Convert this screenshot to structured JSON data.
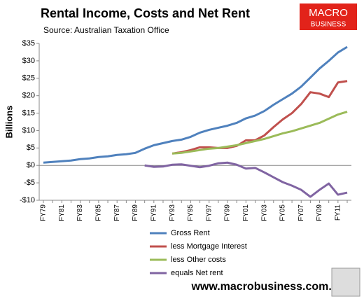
{
  "chart_data": {
    "type": "line",
    "title": "Rental Income, Costs and Net Rent",
    "subtitle": "Source: Australian Taxation Office",
    "y_label": "Billions",
    "footer": "www.macrobusiness.com.au",
    "logo": {
      "line1": "MACRO",
      "line2": "BUSINESS"
    },
    "categories": [
      "FY79",
      null,
      "FY81",
      null,
      "FY83",
      null,
      "FY85",
      null,
      "FY87",
      null,
      "FY89",
      null,
      "FY91",
      null,
      "FY93",
      null,
      "FY95",
      null,
      "FY97",
      null,
      "FY99",
      null,
      "FY01",
      null,
      "FY03",
      null,
      "FY05",
      null,
      "FY07",
      null,
      "FY09",
      null,
      "FY11",
      null
    ],
    "series": [
      {
        "name": "Gross Rent",
        "color": "#4f81bd",
        "values": [
          0.8,
          1.0,
          1.2,
          1.4,
          1.8,
          2.0,
          2.4,
          2.6,
          3.0,
          3.2,
          3.6,
          4.8,
          5.8,
          6.4,
          7.0,
          7.4,
          8.2,
          9.4,
          10.2,
          10.8,
          11.4,
          12.2,
          13.5,
          14.3,
          15.6,
          17.4,
          19.0,
          20.6,
          22.6,
          25.2,
          27.8,
          30.0,
          32.4,
          34.0
        ]
      },
      {
        "name": "less Mortgage Interest",
        "color": "#c0504d",
        "values": [
          null,
          null,
          null,
          null,
          null,
          null,
          null,
          null,
          null,
          null,
          null,
          null,
          null,
          null,
          3.4,
          3.8,
          4.4,
          5.2,
          5.2,
          5.0,
          5.0,
          5.6,
          7.2,
          7.2,
          8.6,
          11.0,
          13.2,
          15.0,
          17.6,
          21.0,
          20.6,
          19.6,
          23.8,
          24.2
        ]
      },
      {
        "name": "less Other costs",
        "color": "#9bbb59",
        "values": [
          null,
          null,
          null,
          null,
          null,
          null,
          null,
          null,
          null,
          null,
          null,
          null,
          null,
          null,
          3.4,
          3.6,
          4.0,
          4.4,
          4.8,
          5.0,
          5.4,
          5.8,
          6.4,
          7.0,
          7.6,
          8.4,
          9.2,
          9.8,
          10.6,
          11.4,
          12.2,
          13.4,
          14.6,
          15.4
        ]
      },
      {
        "name": "equals Net rent",
        "color": "#8064a2",
        "values": [
          null,
          null,
          null,
          null,
          null,
          null,
          null,
          null,
          null,
          null,
          null,
          0.0,
          -0.4,
          -0.3,
          0.2,
          0.3,
          -0.1,
          -0.5,
          -0.1,
          0.6,
          0.8,
          0.2,
          -0.9,
          -0.7,
          -2.0,
          -3.4,
          -4.8,
          -5.8,
          -7.0,
          -9.0,
          -7.0,
          -5.2,
          -8.4,
          -7.8
        ]
      }
    ],
    "ylim": [
      -10,
      35
    ],
    "yticks": [
      {
        "value": -10,
        "label": "-$10"
      },
      {
        "value": -5,
        "label": "-$5"
      },
      {
        "value": 0,
        "label": "$0"
      },
      {
        "value": 5,
        "label": "$5"
      },
      {
        "value": 10,
        "label": "$10"
      },
      {
        "value": 15,
        "label": "$15"
      },
      {
        "value": 20,
        "label": "$20"
      },
      {
        "value": 25,
        "label": "$25"
      },
      {
        "value": 30,
        "label": "$30"
      },
      {
        "value": 35,
        "label": "$35"
      }
    ],
    "grid": false,
    "legend": "bottom"
  }
}
